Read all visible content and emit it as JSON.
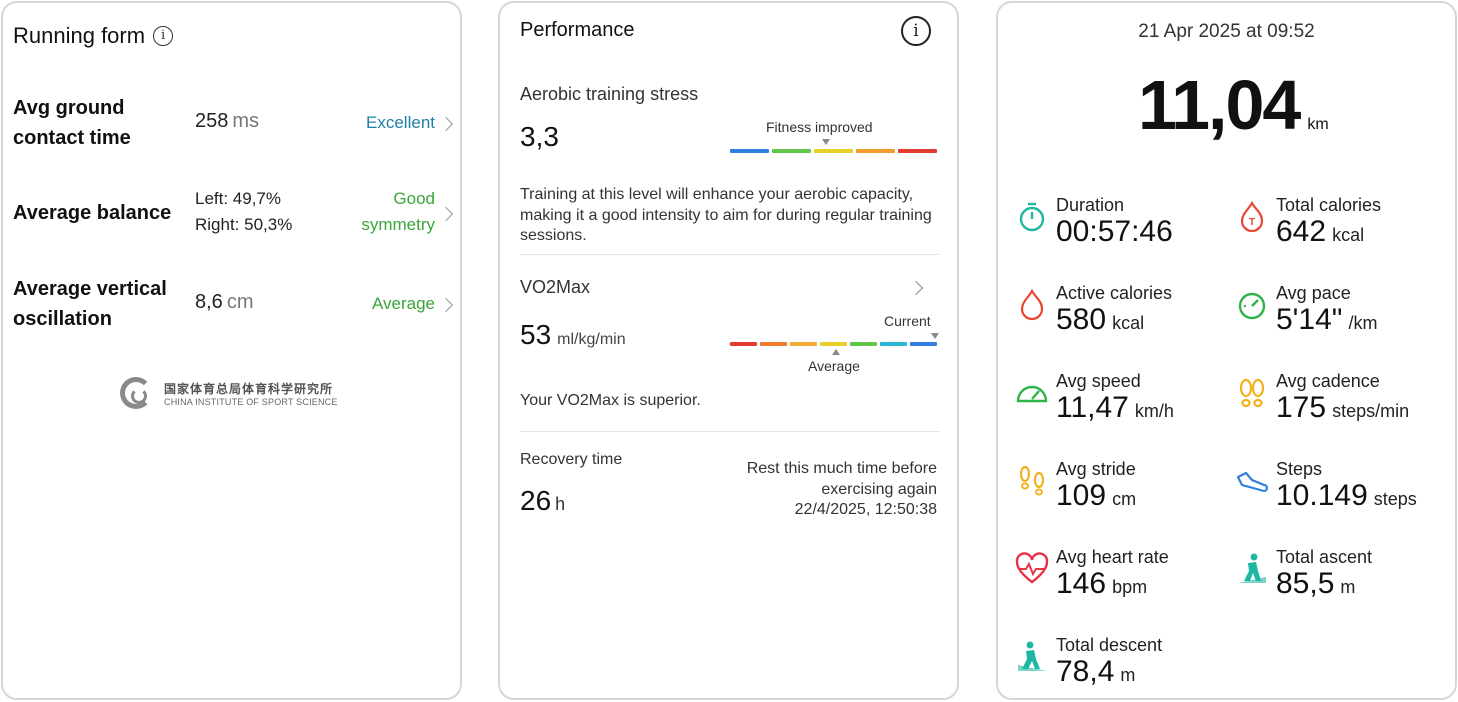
{
  "running_form": {
    "title": "Running form",
    "rows": [
      {
        "label_line1": "Avg ground",
        "label_line2": "contact time",
        "value": "258",
        "unit": "ms",
        "rating": "Excellent"
      },
      {
        "label": "Average balance",
        "left": "Left: 49,7%",
        "right": "Right: 50,3%",
        "rating_line1": "Good",
        "rating_line2": "symmetry"
      },
      {
        "label_line1": "Average vertical",
        "label_line2": "oscillation",
        "value": "8,6",
        "unit": "cm",
        "rating": "Average"
      }
    ],
    "logo_cn": "国家体育总局体育科学研究所",
    "logo_en": "CHINA INSTITUTE OF SPORT SCIENCE"
  },
  "performance": {
    "title": "Performance",
    "aerobic_label": "Aerobic training stress",
    "aerobic_value": "3,3",
    "aerobic_scale_label": "Fitness improved",
    "aerobic_desc": "Training at this level will enhance your aerobic capacity, making it a good intensity to aim for during regular training sessions.",
    "vo2_label": "VO2Max",
    "vo2_value": "53",
    "vo2_unit": "ml/kg/min",
    "vo2_current_label": "Current",
    "vo2_average_label": "Average",
    "vo2_desc": "Your VO2Max is superior.",
    "recovery_label": "Recovery time",
    "recovery_value": "26",
    "recovery_unit": "h",
    "recovery_note_line1": "Rest this much time before",
    "recovery_note_line2": "exercising again",
    "recovery_until": "22/4/2025, 12:50:38",
    "colors": {
      "aerobic_scale": [
        "#2f7fe0",
        "#5fc64a",
        "#e8cf2a",
        "#f29a2e",
        "#e23a2e"
      ],
      "vo2_scale": [
        "#e23a2e",
        "#f07a2a",
        "#f2a83a",
        "#e8cf2a",
        "#5fc64a",
        "#2bb6d6",
        "#2f7fe0"
      ]
    }
  },
  "summary": {
    "date": "21 Apr 2025 at 09:52",
    "distance": "11,04",
    "distance_unit": "km",
    "metrics": [
      {
        "label": "Duration",
        "value": "00:57:46",
        "unit": "",
        "icon": "stopwatch-icon",
        "color": "#1fb7a3"
      },
      {
        "label": "Total calories",
        "value": "642",
        "unit": "kcal",
        "icon": "total-calories-icon",
        "color": "#e8452e"
      },
      {
        "label": "Active calories",
        "value": "580",
        "unit": "kcal",
        "icon": "flame-icon",
        "color": "#e8452e"
      },
      {
        "label": "Avg pace",
        "value": "5'14\"",
        "unit": "/km",
        "icon": "pace-gauge-icon",
        "color": "#2fb24a"
      },
      {
        "label": "Avg speed",
        "value": "11,47",
        "unit": "km/h",
        "icon": "speedometer-icon",
        "color": "#2fb24a"
      },
      {
        "label": "Avg cadence",
        "value": "175",
        "unit": "steps/min",
        "icon": "footprints-icon",
        "color": "#f2b21e"
      },
      {
        "label": "Avg stride",
        "value": "109",
        "unit": "cm",
        "icon": "stride-icon",
        "color": "#f2b21e"
      },
      {
        "label": "Steps",
        "value": "10.149",
        "unit": "steps",
        "icon": "shoe-icon",
        "color": "#2f7fe0"
      },
      {
        "label": "Avg heart rate",
        "value": "146",
        "unit": "bpm",
        "icon": "heart-rate-icon",
        "color": "#e8344a"
      },
      {
        "label": "Total ascent",
        "value": "85,5",
        "unit": "m",
        "icon": "ascent-icon",
        "color": "#1fb7a3"
      },
      {
        "label": "Total descent",
        "value": "78,4",
        "unit": "m",
        "icon": "descent-icon",
        "color": "#1fb7a3"
      }
    ]
  }
}
